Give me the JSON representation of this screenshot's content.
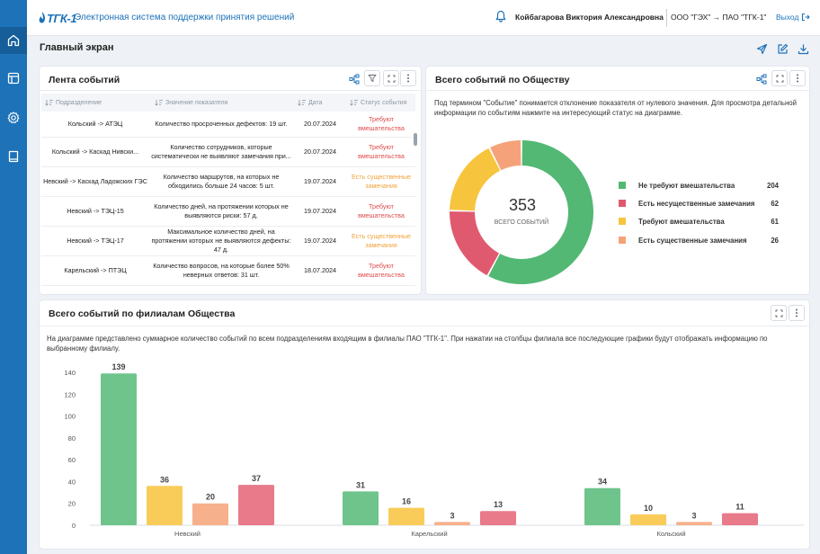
{
  "header": {
    "logo": "ТГК-1",
    "app_title": "Электронная система поддержки принятия решений",
    "user_name": "Койбагарова Виктория Александровна",
    "org": "ООО \"ГЭХ\" → ПАО \"ТГК-1\"",
    "logout": "Выход"
  },
  "page": {
    "title": "Главный экран"
  },
  "feed": {
    "title": "Лента событий",
    "columns": [
      "Подразделение",
      "Значение показателя",
      "Дата",
      "Статус события"
    ],
    "rows": [
      {
        "unit": "Кольский -> АТЭЦ",
        "value": "Количество просроченных дефектов: 19 шт.",
        "date": "20.07.2024",
        "status": "Требуют вмешательства",
        "kind": "red"
      },
      {
        "unit": "Кольский -> Каскад Нивски...",
        "value": "Количество сотрудников, которые систематически не выявляют замечания при...",
        "date": "20.07.2024",
        "status": "Требуют вмешательства",
        "kind": "red"
      },
      {
        "unit": "Невский -> Каскад Ладожских ГЭС",
        "value": "Количество маршрутов, на которых не обходились больше 24 часов: 5 шт.",
        "date": "19.07.2024",
        "status": "Есть существенные замечания",
        "kind": "orange"
      },
      {
        "unit": "Невский -> ТЭЦ-15",
        "value": "Количество дней, на протяжении которых не выявляются риски: 57 д.",
        "date": "19.07.2024",
        "status": "Требуют вмешательства",
        "kind": "red"
      },
      {
        "unit": "Невский -> ТЭЦ-17",
        "value": "Максимальное количество дней, на протяжении которых не выявляются дефекты: 47 д.",
        "date": "19.07.2024",
        "status": "Есть существенные замечания",
        "kind": "orange"
      },
      {
        "unit": "Карельский -> ПТЭЦ",
        "value": "Количество вопросов, на которые более 50% неверных ответов: 31 шт.",
        "date": "18.07.2024",
        "status": "Требуют вмешательства",
        "kind": "red"
      }
    ]
  },
  "summary": {
    "title": "Всего событий по Обществу",
    "description": "Под термином \"Событие\" понимается отклонение показателя от нулевого значения. Для просмотра детальной информации по событиям нажмите на интересующий статус на диаграмме.",
    "total": "353",
    "total_label": "ВСЕГО СОБЫТИЙ"
  },
  "branches": {
    "title": "Всего событий по филиалам Общества",
    "description": "На диаграмме представлено суммарное количество событий по всем подразделениям входящим в филиалы ПАО \"ТГК-1\". При нажатии на столбцы филиала все последующие графики будут отображать информацию по выбранному филиалу."
  },
  "colors": {
    "green": "#52b874",
    "red": "#e05a6f",
    "yellow": "#f7c43d",
    "orange": "#f5a27a",
    "accent": "#1d72b8"
  },
  "chart_data": [
    {
      "type": "pie",
      "labels": [
        "Не требуют вмешательства",
        "Есть несущественные замечания",
        "Требуют вмешательства",
        "Есть существенные замечания"
      ],
      "values": [
        204,
        62,
        61,
        26
      ],
      "colors": [
        "#52b874",
        "#e05a6f",
        "#f7c43d",
        "#f5a27a"
      ],
      "legend": "right"
    },
    {
      "type": "bar",
      "categories": [
        "Невский",
        "Карельский",
        "Кольский"
      ],
      "series": [
        {
          "values": [
            139,
            31,
            34
          ],
          "color": "#6fc48c"
        },
        {
          "values": [
            36,
            16,
            10
          ],
          "color": "#f9cc5a"
        },
        {
          "values": [
            20,
            3,
            3
          ],
          "color": "#f7b08c"
        },
        {
          "values": [
            37,
            13,
            11
          ],
          "color": "#e87a8a"
        }
      ],
      "ylim": [
        0,
        140
      ],
      "yticks": [
        0,
        20,
        40,
        60,
        80,
        100,
        120,
        140
      ],
      "grid": false
    }
  ]
}
